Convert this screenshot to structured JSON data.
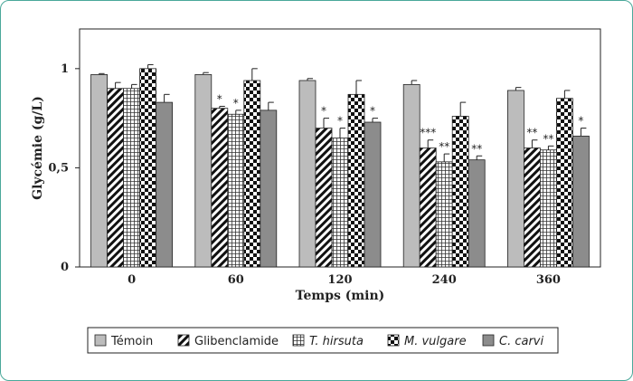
{
  "chart_data": {
    "type": "bar",
    "xlabel": "Temps (min)",
    "ylabel": "Glycémie (g/L)",
    "ylim": [
      0,
      1.2
    ],
    "yticks": [
      {
        "value": 0,
        "label": "0"
      },
      {
        "value": 0.5,
        "label": "0,5"
      },
      {
        "value": 1,
        "label": "1"
      }
    ],
    "categories": [
      "0",
      "60",
      "120",
      "240",
      "360"
    ],
    "series": [
      {
        "name": "Témoin",
        "italic": false,
        "fill": "#bcbcbc",
        "pattern": "solid",
        "values": [
          0.97,
          0.97,
          0.94,
          0.92,
          0.89
        ],
        "errors": [
          0.005,
          0.01,
          0.01,
          0.02,
          0.015
        ],
        "stars": [
          "",
          "",
          "",
          "",
          ""
        ]
      },
      {
        "name": "Glibenclamide",
        "italic": false,
        "fill": "#ffffff",
        "pattern": "hatch",
        "values": [
          0.9,
          0.8,
          0.7,
          0.6,
          0.6
        ],
        "errors": [
          0.03,
          0.01,
          0.05,
          0.04,
          0.04
        ],
        "stars": [
          "",
          "*",
          "*",
          "***",
          "**"
        ]
      },
      {
        "name": "T. hirsuta",
        "italic": true,
        "fill": "#ffffff",
        "pattern": "grid",
        "values": [
          0.9,
          0.77,
          0.65,
          0.53,
          0.59
        ],
        "errors": [
          0.02,
          0.02,
          0.05,
          0.04,
          0.02
        ],
        "stars": [
          "",
          "*",
          "*",
          "**",
          "**"
        ]
      },
      {
        "name": "M. vulgare",
        "italic": true,
        "fill": "#ffffff",
        "pattern": "checker",
        "values": [
          1.0,
          0.94,
          0.87,
          0.76,
          0.85
        ],
        "errors": [
          0.02,
          0.06,
          0.07,
          0.07,
          0.04
        ],
        "stars": [
          "",
          "",
          "",
          "",
          ""
        ]
      },
      {
        "name": "C. carvi",
        "italic": true,
        "fill": "#8c8c8c",
        "pattern": "solid",
        "values": [
          0.83,
          0.79,
          0.73,
          0.54,
          0.66
        ],
        "errors": [
          0.04,
          0.04,
          0.02,
          0.02,
          0.04
        ],
        "stars": [
          "",
          "",
          "*",
          "**",
          "*"
        ]
      }
    ],
    "colors": {
      "border": "#4aa89a",
      "axis": "#222222",
      "bar_stroke": "#222222"
    }
  }
}
